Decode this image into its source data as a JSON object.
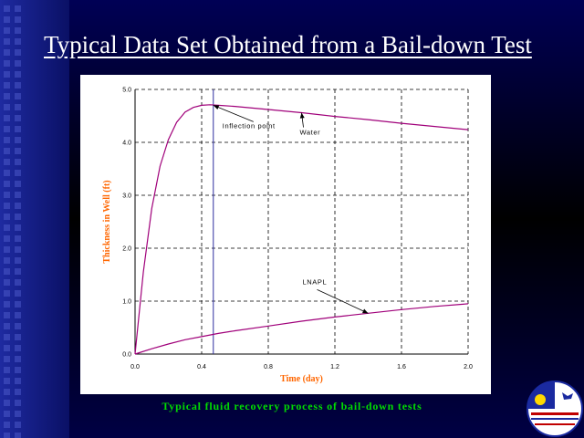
{
  "slide": {
    "title": "Typical Data Set Obtained from a Bail-down Test",
    "caption": "Typical fluid recovery process of bail-down tests"
  },
  "colors": {
    "background": "#000033",
    "plot_background": "#ffffff",
    "curve": "#a0007a",
    "inflection_line": "#3030a0",
    "axis_labels": "#ff6600",
    "caption": "#00dd00"
  },
  "chart_data": {
    "type": "line",
    "title": "",
    "xlabel": "Time (day)",
    "ylabel": "Thickness in Well (ft)",
    "xlim": [
      0.0,
      2.0
    ],
    "ylim": [
      0.0,
      5.0
    ],
    "xticks": [
      "0.0",
      "0.4",
      "0.8",
      "1.2",
      "1.6",
      "2.0"
    ],
    "yticks": [
      "0.0",
      "1.0",
      "2.0",
      "3.0",
      "4.0",
      "5.0"
    ],
    "grid": true,
    "series": [
      {
        "name": "Water",
        "x": [
          0.0,
          0.05,
          0.1,
          0.15,
          0.2,
          0.25,
          0.3,
          0.35,
          0.4,
          0.45,
          0.5,
          0.6,
          0.8,
          1.0,
          1.2,
          1.4,
          1.6,
          1.8,
          2.0
        ],
        "y": [
          0.0,
          1.55,
          2.75,
          3.55,
          4.05,
          4.38,
          4.57,
          4.66,
          4.7,
          4.71,
          4.7,
          4.68,
          4.62,
          4.56,
          4.49,
          4.43,
          4.36,
          4.3,
          4.24
        ]
      },
      {
        "name": "LNAPL",
        "x": [
          0.0,
          0.1,
          0.2,
          0.3,
          0.4,
          0.5,
          0.6,
          0.8,
          1.0,
          1.2,
          1.4,
          1.6,
          1.8,
          2.0
        ],
        "y": [
          0.0,
          0.1,
          0.19,
          0.27,
          0.33,
          0.39,
          0.44,
          0.53,
          0.62,
          0.7,
          0.77,
          0.84,
          0.9,
          0.95
        ]
      }
    ],
    "annotations": [
      {
        "text": "Inflection point",
        "x": 0.47,
        "y": 4.7
      },
      {
        "text": "Water",
        "x": 1.0,
        "y": 4.56
      },
      {
        "text": "LNAPL",
        "x": 1.4,
        "y": 0.77
      }
    ],
    "inflection_x": 0.47
  }
}
